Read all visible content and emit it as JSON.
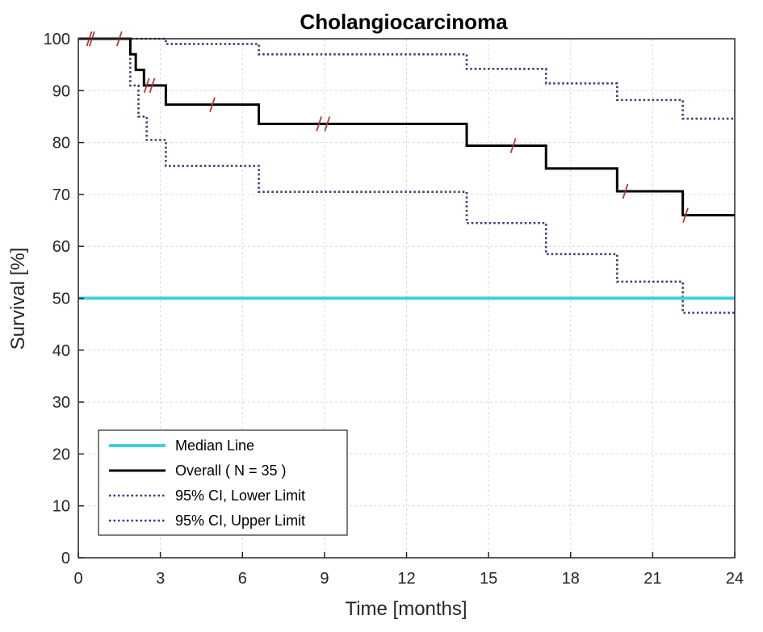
{
  "chart_data": {
    "type": "line",
    "title": "Cholangiocarcinoma",
    "xlabel": "Time [months]",
    "ylabel": "Survival [%]",
    "xlim": [
      0,
      24
    ],
    "ylim": [
      0,
      100
    ],
    "x_ticks": [
      0,
      3,
      6,
      9,
      12,
      15,
      18,
      21,
      24
    ],
    "y_ticks": [
      0,
      10,
      20,
      30,
      40,
      50,
      60,
      70,
      80,
      90,
      100
    ],
    "grid": true,
    "legend_position": "bottom-left",
    "series": [
      {
        "key": "median",
        "name": "Median Line",
        "color": "#3fd0de",
        "style": "solid",
        "x": [
          0,
          24
        ],
        "y": [
          50,
          50
        ]
      },
      {
        "key": "overall",
        "name": "Overall ( N = 35 )",
        "color": "#000000",
        "style": "step",
        "x": [
          0,
          1.9,
          2.1,
          2.4,
          2.6,
          3.2,
          6.6,
          14.2,
          17.1,
          19.7,
          22.1,
          24
        ],
        "y": [
          100,
          97,
          94,
          91,
          91,
          87.3,
          83.6,
          79.4,
          75,
          70.6,
          66,
          66
        ],
        "censor_times": [
          0.4,
          0.5,
          1.5,
          2.5,
          2.7,
          4.9,
          8.8,
          9.1,
          15.9,
          20.0,
          22.2
        ]
      },
      {
        "key": "lower",
        "name": "95% CI, Lower Limit",
        "color": "#3c3c78",
        "style": "dotted-step",
        "x": [
          0,
          1.9,
          2.2,
          2.5,
          3.2,
          6.6,
          14.2,
          17.1,
          19.7,
          22.1,
          24
        ],
        "y": [
          100,
          91,
          85,
          80.5,
          75.5,
          70.5,
          64.5,
          58.5,
          53.2,
          47.2,
          47.2
        ]
      },
      {
        "key": "upper",
        "name": "95% CI, Upper Limit",
        "color": "#3c3c78",
        "style": "dotted-step",
        "x": [
          0,
          3.2,
          6.6,
          14.2,
          17.1,
          19.7,
          22.1,
          24
        ],
        "y": [
          100,
          99,
          97,
          94.2,
          91.4,
          88.2,
          84.6,
          84.6
        ]
      }
    ]
  }
}
